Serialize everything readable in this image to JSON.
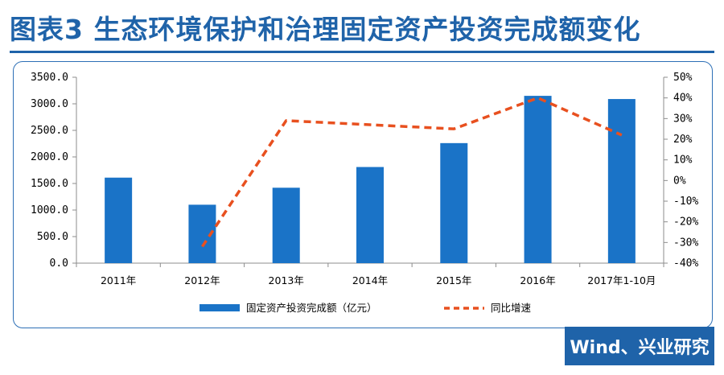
{
  "title": "图表3 生态环境保护和治理固定资产投资完成额变化",
  "source": "Wind、兴业研究",
  "colors": {
    "brand": "#1f63a9",
    "bar": "#1a73c7",
    "line": "#e8501f",
    "axis": "#8c8c8c"
  },
  "chart_data": {
    "type": "bar",
    "categories": [
      "2011年",
      "2012年",
      "2013年",
      "2014年",
      "2015年",
      "2016年",
      "2017年1-10月"
    ],
    "series": [
      {
        "name": "固定资产投资完成额（亿元）",
        "type": "bar",
        "axis": "left",
        "values": [
          1610,
          1100,
          1420,
          1810,
          2260,
          3150,
          3090
        ]
      },
      {
        "name": "同比增速",
        "type": "line",
        "axis": "right",
        "style": "dashed",
        "values": [
          null,
          -32,
          29,
          27,
          25,
          40,
          22
        ]
      }
    ],
    "left_axis": {
      "ylim": [
        0,
        3500
      ],
      "ticks": [
        "0.0",
        "500.0",
        "1000.0",
        "1500.0",
        "2000.0",
        "2500.0",
        "3000.0",
        "3500.0"
      ]
    },
    "right_axis": {
      "ylim": [
        -40,
        50
      ],
      "ticks": [
        "-40%",
        "-30%",
        "-20%",
        "-10%",
        "0%",
        "10%",
        "20%",
        "30%",
        "40%",
        "50%"
      ]
    },
    "legend_position": "bottom",
    "grid": false
  }
}
